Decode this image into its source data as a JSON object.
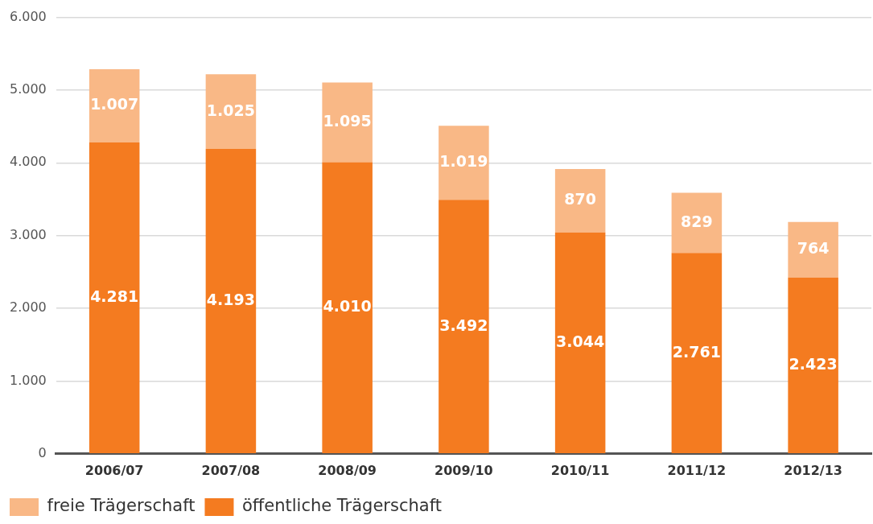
{
  "chart_data": {
    "type": "bar",
    "stacked": true,
    "categories": [
      "2006/07",
      "2007/08",
      "2008/09",
      "2009/10",
      "2010/11",
      "2011/12",
      "2012/13"
    ],
    "series": [
      {
        "name": "öffentliche Trägerschaft",
        "color": "#f47b20",
        "values": [
          4281,
          4193,
          4010,
          3492,
          3044,
          2761,
          2423
        ],
        "value_labels": [
          "4.281",
          "4.193",
          "4.010",
          "3.492",
          "3.044",
          "2.761",
          "2.423"
        ]
      },
      {
        "name": "freie Trägerschaft",
        "color": "#f9b886",
        "values": [
          1007,
          1025,
          1095,
          1019,
          870,
          829,
          764
        ],
        "value_labels": [
          "1.007",
          "1.025",
          "1.095",
          "1.019",
          "870",
          "829",
          "764"
        ]
      }
    ],
    "ylim": [
      0,
      6000
    ],
    "yticks": [
      {
        "value": 0,
        "label": "0"
      },
      {
        "value": 1000,
        "label": "1.000"
      },
      {
        "value": 2000,
        "label": "2.000"
      },
      {
        "value": 3000,
        "label": "3.000"
      },
      {
        "value": 4000,
        "label": "4.000"
      },
      {
        "value": 5000,
        "label": "5.000"
      },
      {
        "value": 6000,
        "label": "6.000"
      }
    ],
    "grid": "y",
    "legend": "bottom left"
  }
}
